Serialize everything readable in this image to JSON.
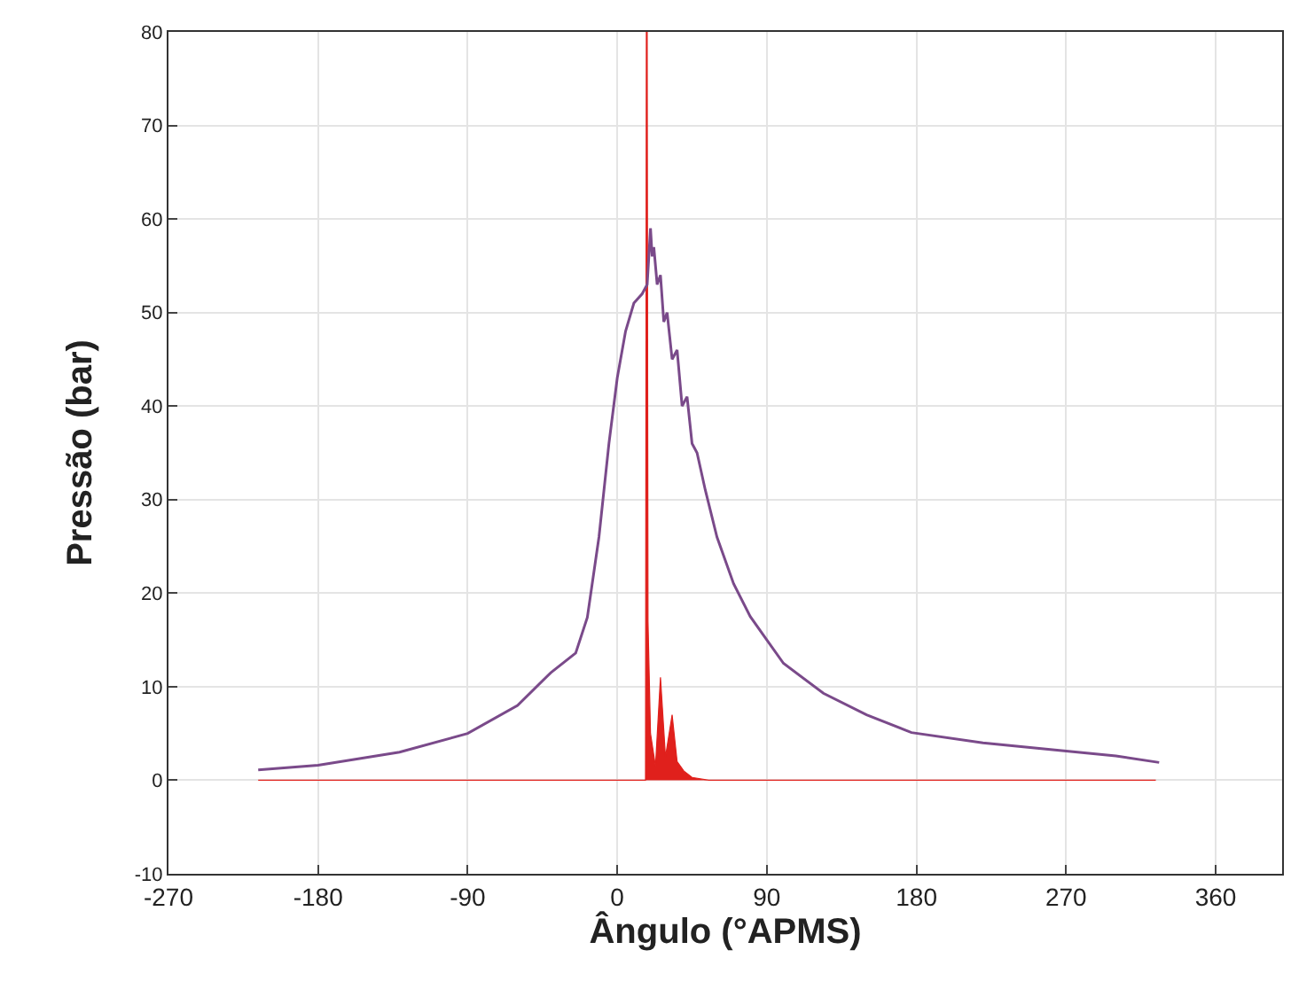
{
  "chart_data": {
    "type": "line",
    "xlabel": "Ângulo (°APMS)",
    "ylabel": "Pressão (bar)",
    "xlim": [
      -270,
      400
    ],
    "xticks": [
      -270,
      -180,
      -90,
      0,
      90,
      180,
      270,
      360
    ],
    "ylim": [
      -10,
      80
    ],
    "yticks": [
      -10,
      0,
      10,
      20,
      30,
      40,
      50,
      60,
      70,
      80
    ],
    "grid": true,
    "legend": false,
    "marker": "none",
    "line_style": "solid",
    "series": [
      {
        "color": "#7a4a8a",
        "x": [
          -216,
          -180,
          -131,
          -90,
          -60,
          -40,
          -25,
          -18,
          -11,
          -5,
          0,
          5,
          10,
          15,
          18,
          20,
          21,
          22,
          24,
          26,
          28,
          30,
          33,
          36,
          39,
          42,
          45,
          48,
          53,
          60,
          70,
          80,
          88,
          100,
          124,
          150,
          177,
          220,
          266,
          300,
          326
        ],
        "values": [
          1.1,
          1.6,
          3,
          5,
          8,
          11.5,
          13.6,
          17.4,
          26,
          36,
          43,
          48,
          51,
          52,
          53,
          59,
          56,
          57,
          53,
          54,
          49,
          50,
          45,
          46,
          40,
          41,
          36,
          35,
          31,
          26,
          21,
          17.5,
          15.5,
          12.5,
          9.3,
          7,
          5.1,
          4,
          3.2,
          2.6,
          1.9
        ]
      },
      {
        "type": "area",
        "color": "#e0201c",
        "x": [
          -216,
          17,
          17.5,
          18,
          18.5,
          20,
          23,
          26,
          29,
          33,
          36,
          40,
          45,
          55,
          324
        ],
        "values": [
          0,
          0,
          80,
          80,
          17,
          5,
          1.5,
          11,
          2.5,
          7,
          2,
          1,
          0.3,
          0,
          0
        ]
      }
    ]
  }
}
